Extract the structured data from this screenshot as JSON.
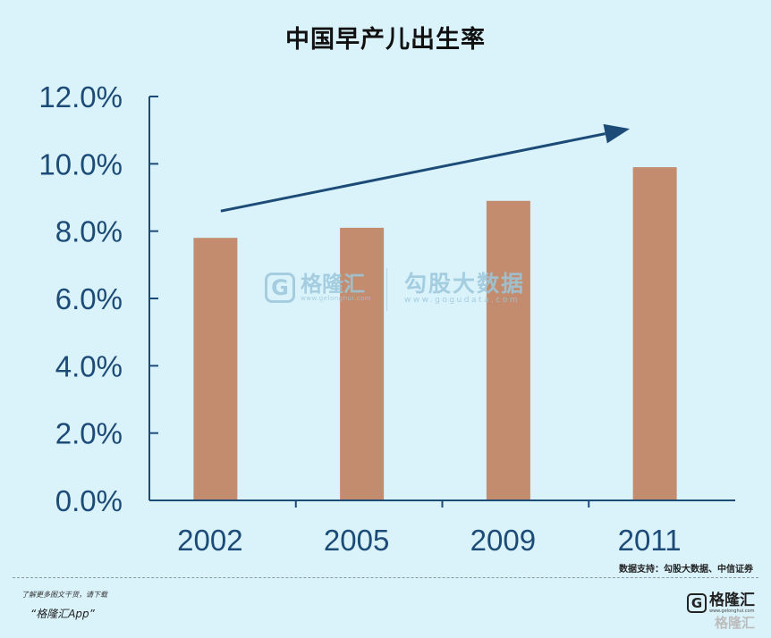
{
  "chart_data": {
    "type": "bar",
    "title": "中国早产儿出生率",
    "categories": [
      "2002",
      "2005",
      "2009",
      "2011"
    ],
    "values": [
      7.8,
      8.1,
      8.9,
      9.9
    ],
    "y_ticks": [
      "0.0%",
      "2.0%",
      "4.0%",
      "6.0%",
      "8.0%",
      "10.0%",
      "12.0%"
    ],
    "ylim": [
      0,
      12
    ],
    "grid": false,
    "xlabel": "",
    "ylabel": "",
    "annotation": "upward-trend-arrow",
    "colors": {
      "bar": "#c38c6e",
      "axis": "#1d4b78",
      "arrow": "#1d4b78",
      "background": "#daf3fb"
    }
  },
  "watermark": {
    "left_name": "格隆汇",
    "left_url": "www.gelonghui.com",
    "left_letter": "G",
    "right_name": "勾股大数据",
    "right_url": "www.gogudata.com"
  },
  "source": "数据支持：勾股大数据、中信证券",
  "footer": {
    "line1": "了解更多图文干货，请下载",
    "line2": "“格隆汇App”",
    "logo_letter": "G",
    "logo_name": "格隆汇",
    "logo_url": "www.gelonghui.com",
    "logo_ghost": "格隆汇"
  }
}
